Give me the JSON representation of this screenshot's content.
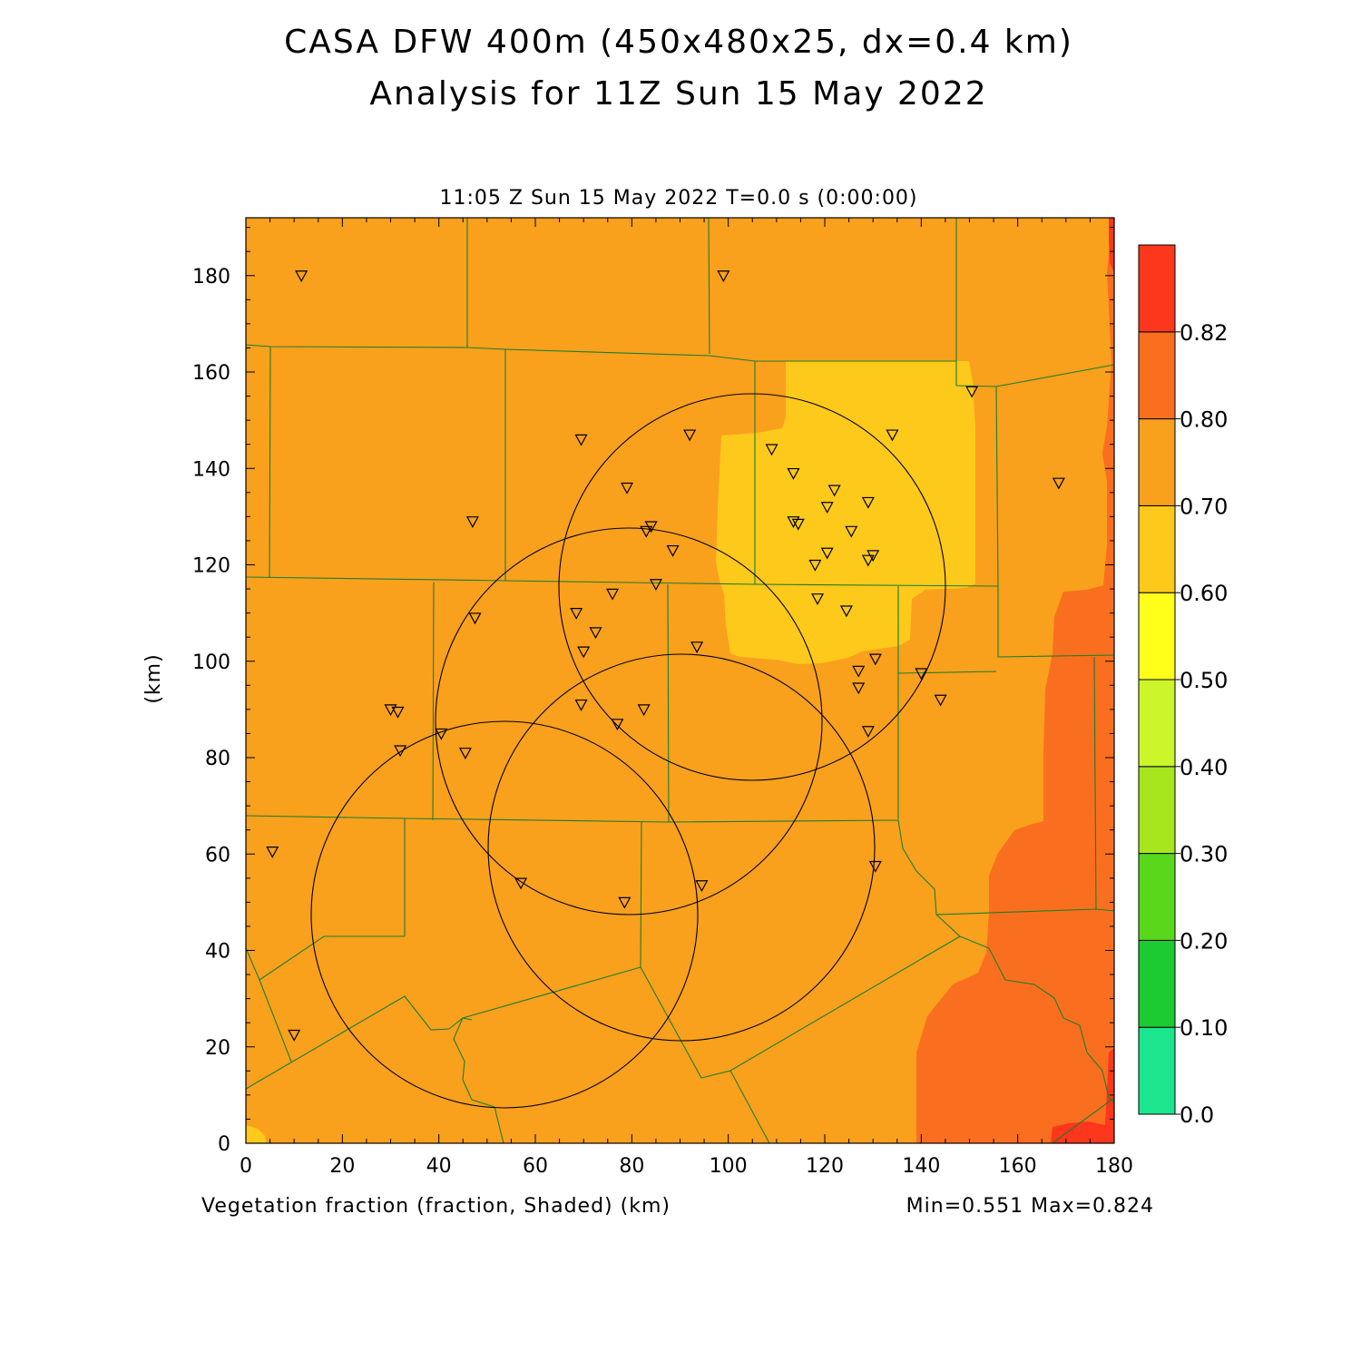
{
  "header": {
    "title_line1": "CASA DFW 400m (450x480x25, dx=0.4 km)",
    "title_line2": "Analysis for 11Z Sun 15 May 2022",
    "time_label": "11:05 Z Sun 15 May 2022   T=0.0 s (0:00:00)"
  },
  "footer": {
    "field_label": "Vegetation fraction (fraction, Shaded)  (km)",
    "min_max": "Min=0.551 Max=0.824"
  },
  "chart_data": {
    "type": "heatmap",
    "field": "Vegetation fraction",
    "xlabel": "(km)",
    "ylabel": "(km)",
    "xlim": [
      0,
      180
    ],
    "ylim": [
      0,
      192
    ],
    "x_ticks": [
      0,
      20,
      40,
      60,
      80,
      100,
      120,
      140,
      160,
      180
    ],
    "y_ticks": [
      0,
      20,
      40,
      60,
      80,
      100,
      120,
      140,
      160,
      180
    ],
    "colorbar": {
      "levels": [
        "0.0",
        "0.10",
        "0.20",
        "0.30",
        "0.40",
        "0.50",
        "0.60",
        "0.70",
        "0.80",
        "0.82"
      ],
      "colors": [
        "#1be68d",
        "#1ccb32",
        "#59d81b",
        "#a7e51c",
        "#ccf52a",
        "#ffff1a",
        "#fdc91b",
        "#f9a01d",
        "#fa6f1f",
        "#fd371b"
      ]
    },
    "min": 0.551,
    "max": 0.824,
    "radar_range_rings": [
      {
        "center_x": 105,
        "center_y": 115,
        "radius": 40
      },
      {
        "center_x": 78,
        "center_y": 87,
        "radius": 40
      },
      {
        "center_x": 91,
        "center_y": 61,
        "radius": 40
      },
      {
        "center_x": 54,
        "center_y": 48,
        "radius": 40
      }
    ],
    "stations": [
      [
        11.5,
        180
      ],
      [
        99,
        180
      ],
      [
        150.5,
        156
      ],
      [
        92,
        147
      ],
      [
        134,
        147
      ],
      [
        69.5,
        146
      ],
      [
        109,
        144
      ],
      [
        113.5,
        139
      ],
      [
        79,
        136
      ],
      [
        122,
        135.5
      ],
      [
        168.5,
        137
      ],
      [
        129,
        133
      ],
      [
        120.5,
        132
      ],
      [
        47,
        129
      ],
      [
        113.5,
        129
      ],
      [
        114.5,
        128.5
      ],
      [
        84,
        128
      ],
      [
        83,
        127
      ],
      [
        125.5,
        127
      ],
      [
        88.5,
        123
      ],
      [
        120.5,
        122.5
      ],
      [
        130,
        122
      ],
      [
        129,
        121
      ],
      [
        118,
        120
      ],
      [
        85,
        116
      ],
      [
        76,
        114
      ],
      [
        118.5,
        113
      ],
      [
        124.5,
        110.5
      ],
      [
        68.5,
        110
      ],
      [
        47.5,
        109
      ],
      [
        72.5,
        106
      ],
      [
        93.5,
        103
      ],
      [
        70,
        102
      ],
      [
        130.5,
        100.5
      ],
      [
        127,
        98
      ],
      [
        140,
        97.5
      ],
      [
        127,
        94.5
      ],
      [
        144,
        92
      ],
      [
        69.5,
        91
      ],
      [
        82.5,
        90
      ],
      [
        30,
        90
      ],
      [
        31.5,
        89.5
      ],
      [
        77,
        87
      ],
      [
        40.5,
        85
      ],
      [
        129,
        85.5
      ],
      [
        45.5,
        81
      ],
      [
        32,
        81.5
      ],
      [
        5.5,
        60.5
      ],
      [
        130.5,
        57.5
      ],
      [
        57,
        54
      ],
      [
        94.5,
        53.5
      ],
      [
        78.5,
        50
      ],
      [
        10,
        22.5
      ]
    ]
  }
}
